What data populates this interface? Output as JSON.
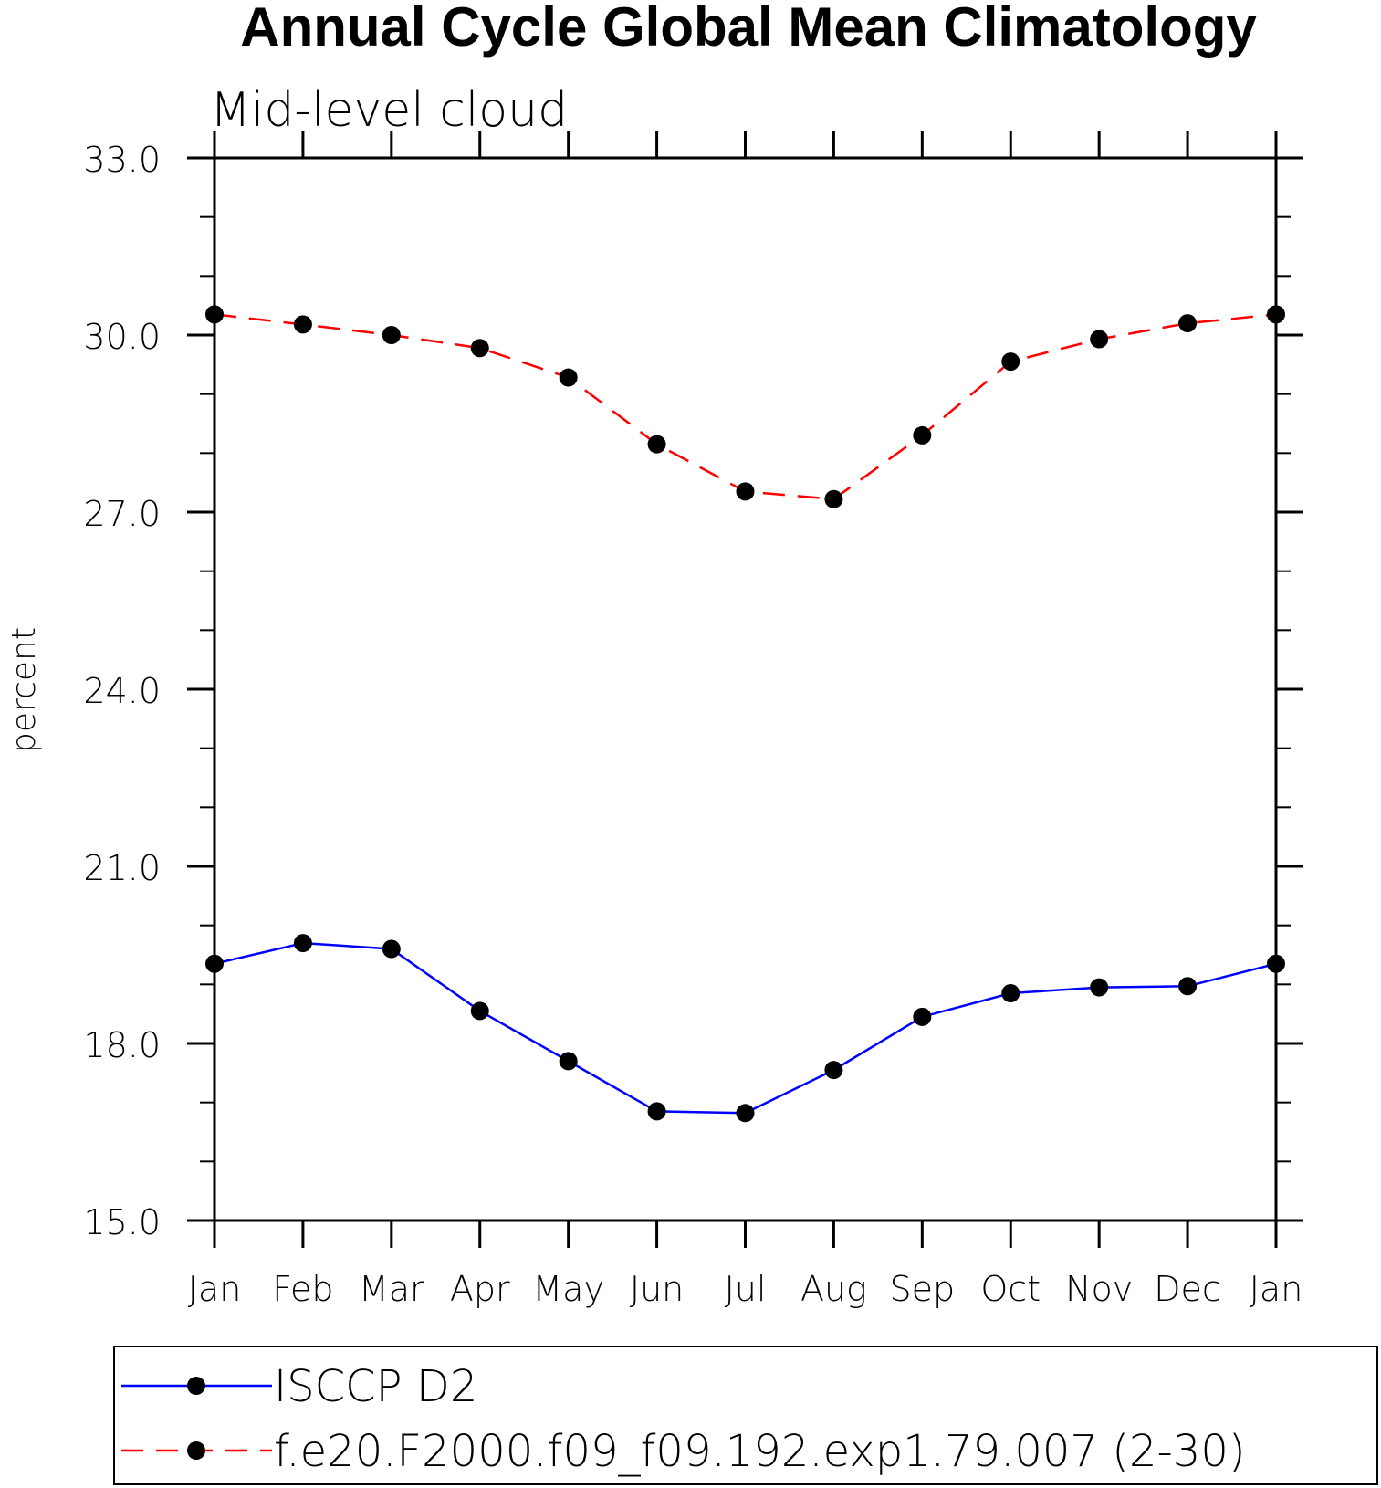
{
  "chart_data": {
    "type": "line",
    "title": "Annual Cycle Global Mean Climatology",
    "subtitle": "Mid-level cloud",
    "xlabel": "",
    "ylabel": "percent",
    "categories": [
      "Jan",
      "Feb",
      "Mar",
      "Apr",
      "May",
      "Jun",
      "Jul",
      "Aug",
      "Sep",
      "Oct",
      "Nov",
      "Dec",
      "Jan"
    ],
    "ylim": [
      15.0,
      33.0
    ],
    "yticks": [
      "15.0",
      "18.0",
      "21.0",
      "24.0",
      "27.0",
      "30.0",
      "33.0"
    ],
    "grid": false,
    "legend_position": "bottom",
    "series": [
      {
        "name": "ISCCP D2",
        "color": "#0000ff",
        "line_style": "solid",
        "marker": "circle",
        "values": [
          19.35,
          19.7,
          19.6,
          18.55,
          17.7,
          16.85,
          16.82,
          17.55,
          18.45,
          18.85,
          18.95,
          18.97,
          19.35
        ]
      },
      {
        "name": "f.e20.F2000.f09_f09.192.exp1.79.007 (2-30)",
        "color": "#ff0000",
        "line_style": "dashed",
        "marker": "circle",
        "values": [
          30.35,
          30.18,
          30.0,
          29.78,
          29.28,
          28.15,
          27.35,
          27.22,
          28.3,
          29.55,
          29.93,
          30.2,
          30.35
        ]
      }
    ]
  }
}
